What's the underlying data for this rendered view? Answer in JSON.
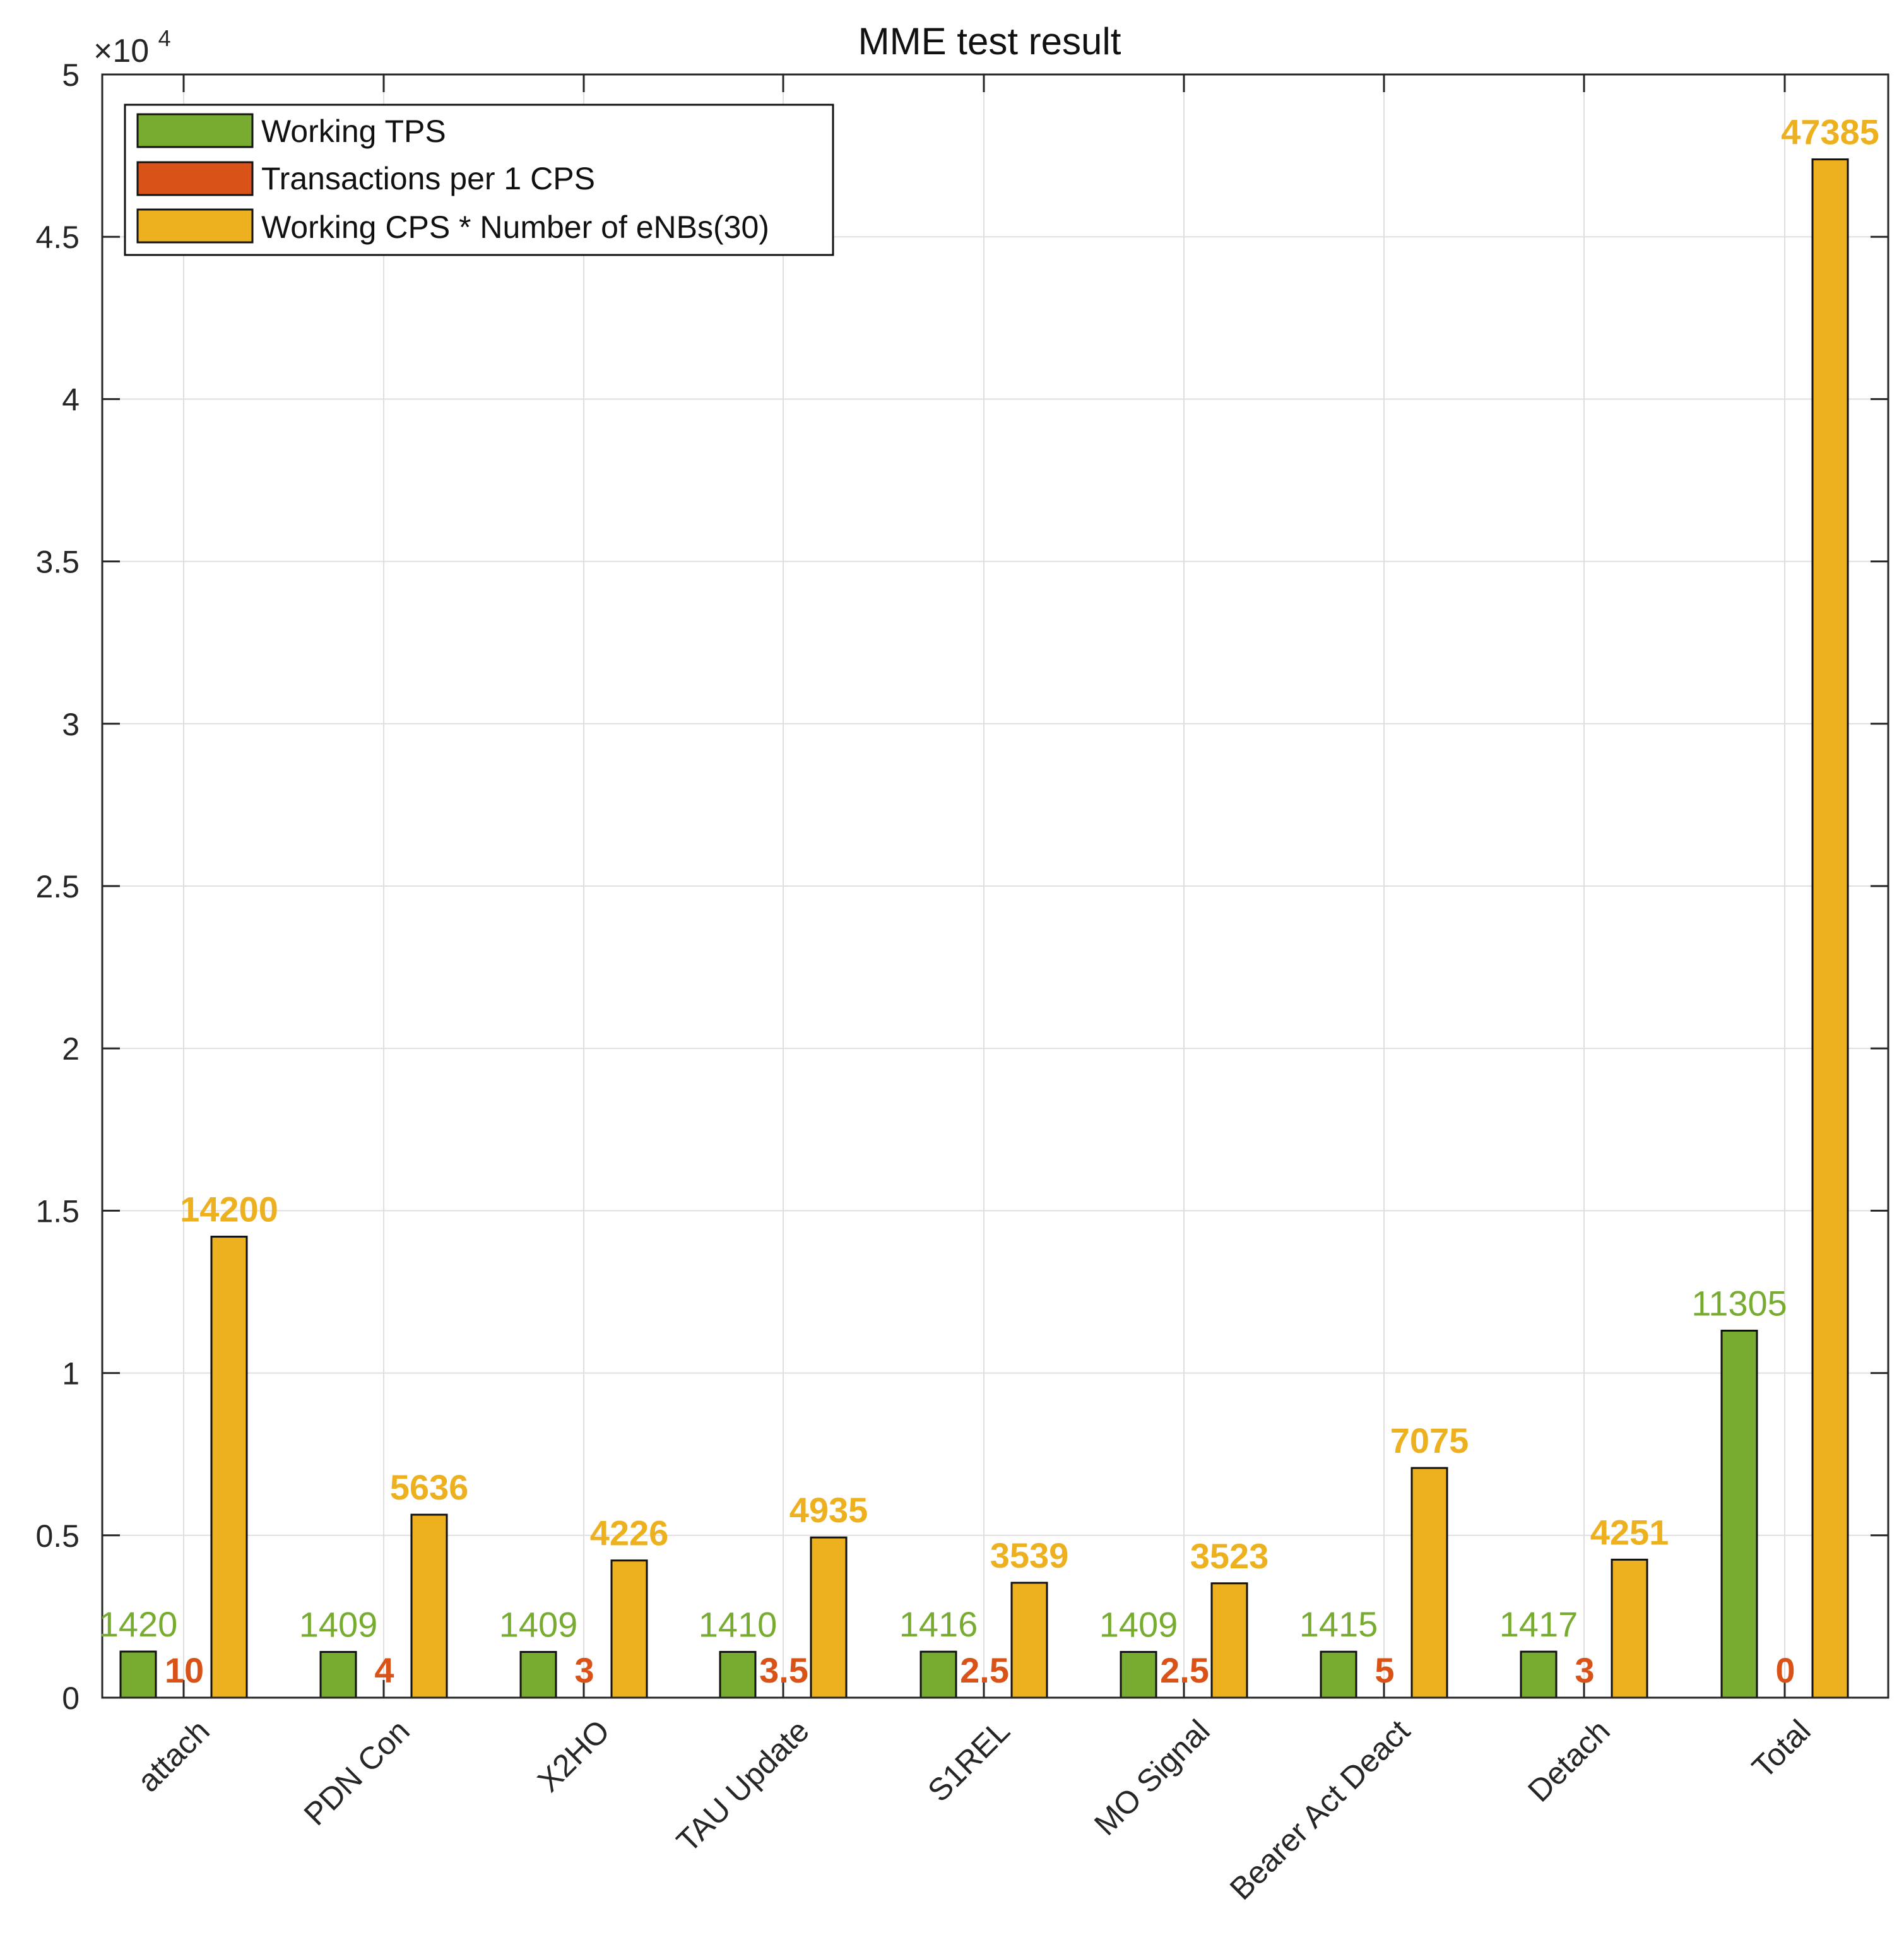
{
  "chart_data": {
    "type": "bar",
    "title": "MME test result",
    "xlabel": "",
    "ylabel": "",
    "ylim": [
      0,
      50000
    ],
    "ytick_values": [
      0,
      5000,
      10000,
      15000,
      20000,
      25000,
      30000,
      35000,
      40000,
      45000,
      50000
    ],
    "ytick_labels": [
      "0",
      "0.5",
      "1",
      "1.5",
      "2",
      "2.5",
      "3",
      "3.5",
      "4",
      "4.5",
      "5"
    ],
    "y_exponent": {
      "prefix": "×10",
      "power": "4"
    },
    "grid": true,
    "legend_position": "top-left",
    "categories": [
      "attach",
      "PDN Con",
      "X2HO",
      "TAU Update",
      "S1REL",
      "MO Signal",
      "Bearer Act Deact",
      "Detach",
      "Total"
    ],
    "series": [
      {
        "name": "Working TPS",
        "color": "#77AC30",
        "values": [
          1420,
          1409,
          1409,
          1410,
          1416,
          1409,
          1415,
          1417,
          11305
        ],
        "labels": [
          "1420",
          "1409",
          "1409",
          "1410",
          "1416",
          "1409",
          "1415",
          "1417",
          "11305"
        ]
      },
      {
        "name": "Transactions per 1 CPS",
        "color": "#D95319",
        "values": [
          10,
          4,
          3,
          3.5,
          2.5,
          2.5,
          5,
          3,
          0
        ],
        "labels": [
          "10",
          "4",
          "3",
          "3.5",
          "2.5",
          "2.5",
          "5",
          "3",
          "0"
        ]
      },
      {
        "name": "Working CPS * Number of eNBs(30)",
        "color": "#EDB120",
        "values": [
          14200,
          5636,
          4226,
          4935,
          3539,
          3523,
          7075,
          4251,
          47385
        ],
        "labels": [
          "14200",
          "5636",
          "4226",
          "4935",
          "3539",
          "3523",
          "7075",
          "4251",
          "47385"
        ]
      }
    ]
  }
}
